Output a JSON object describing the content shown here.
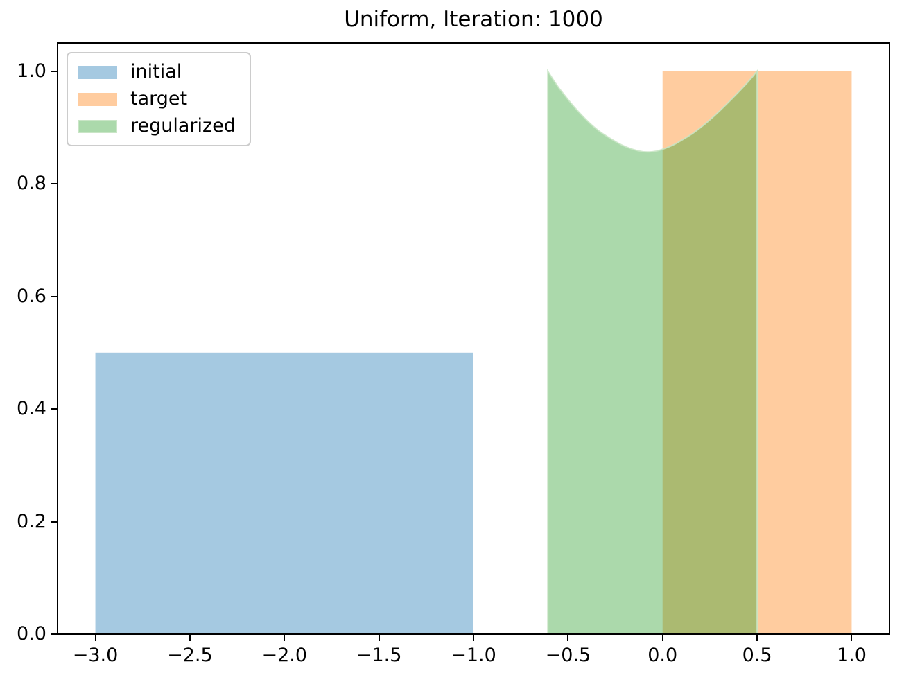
{
  "title": "Uniform, Iteration: 1000",
  "legend": {
    "position": "upper left",
    "items": [
      {
        "label": "initial",
        "color": "#1f77b4",
        "alpha": 0.4,
        "edge": "none"
      },
      {
        "label": "target",
        "color": "#ff7f0e",
        "alpha": 0.4,
        "edge": "none"
      },
      {
        "label": "regularized",
        "color": "#2ca02c",
        "alpha": 0.4,
        "edge": "#c9e5c6"
      }
    ]
  },
  "axes_style": {
    "spine_color": "#000000",
    "tick_color": "#000000",
    "tick_label_color": "#000000",
    "background": "#ffffff"
  },
  "chart_data": {
    "type": "area",
    "title": "Uniform, Iteration: 1000",
    "xlabel": "",
    "ylabel": "",
    "grid": false,
    "legend_position": "upper left",
    "xlim": [
      -3.2,
      1.2
    ],
    "ylim": [
      0,
      1.05
    ],
    "x_ticks": [
      -3.0,
      -2.5,
      -2.0,
      -1.5,
      -1.0,
      -0.5,
      0.0,
      0.5,
      1.0
    ],
    "x_tick_labels": [
      "−3.0",
      "−2.5",
      "−2.0",
      "−1.5",
      "−1.0",
      "−0.5",
      "0.0",
      "0.5",
      "1.0"
    ],
    "y_ticks": [
      0.0,
      0.2,
      0.4,
      0.6,
      0.8,
      1.0
    ],
    "y_tick_labels": [
      "0.0",
      "0.2",
      "0.4",
      "0.6",
      "0.8",
      "1.0"
    ],
    "series": [
      {
        "name": "initial",
        "kind": "uniform-rect",
        "x_range": [
          -3.0,
          -1.0
        ],
        "height": 0.5,
        "color": "#1f77b4",
        "alpha": 0.4
      },
      {
        "name": "target",
        "kind": "uniform-rect",
        "x_range": [
          0.0,
          1.0
        ],
        "height": 1.0,
        "color": "#ff7f0e",
        "alpha": 0.4
      },
      {
        "name": "regularized",
        "kind": "density-curve",
        "x_range": [
          -0.607,
          0.5
        ],
        "min_value": 0.856,
        "argmin": -0.1,
        "max_value": 1.0,
        "curve": [
          [
            -0.607,
            1.0
          ],
          [
            -0.56,
            0.975
          ],
          [
            -0.525,
            0.96
          ],
          [
            -0.47,
            0.937
          ],
          [
            -0.4,
            0.912
          ],
          [
            -0.34,
            0.894
          ],
          [
            -0.28,
            0.881
          ],
          [
            -0.22,
            0.869
          ],
          [
            -0.16,
            0.861
          ],
          [
            -0.1,
            0.856
          ],
          [
            -0.04,
            0.857
          ],
          [
            0.0,
            0.861
          ],
          [
            0.06,
            0.869
          ],
          [
            0.1,
            0.877
          ],
          [
            0.16,
            0.889
          ],
          [
            0.21,
            0.902
          ],
          [
            0.27,
            0.919
          ],
          [
            0.335,
            0.94
          ],
          [
            0.4,
            0.962
          ],
          [
            0.456,
            0.982
          ],
          [
            0.5,
            1.0
          ]
        ],
        "color": "#2ca02c",
        "alpha": 0.4,
        "edge_color": "#c9e5c6"
      }
    ]
  }
}
